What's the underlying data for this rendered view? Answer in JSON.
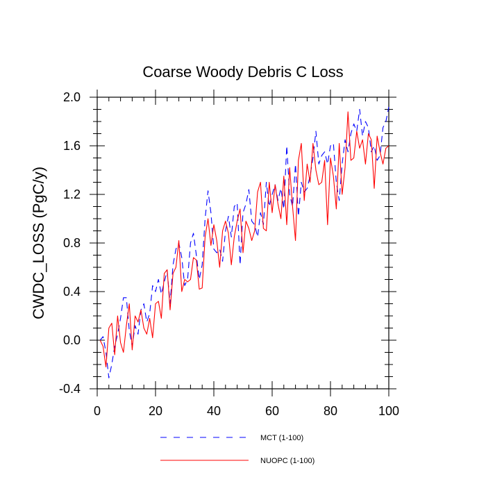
{
  "chart_data": {
    "type": "line",
    "title": "Coarse Woody Debris C Loss",
    "xlabel": "",
    "ylabel": "CWDC_LOSS  (PgC/y)",
    "xlim": [
      0,
      100
    ],
    "ylim": [
      -0.4,
      2.0
    ],
    "xticks": [
      0,
      20,
      40,
      60,
      80,
      100
    ],
    "xtick_labels": [
      "0",
      "20",
      "40",
      "60",
      "80",
      "100"
    ],
    "yticks": [
      -0.4,
      0.0,
      0.4,
      0.8,
      1.2,
      1.6,
      2.0
    ],
    "ytick_labels": [
      "-0.4",
      "0.0",
      "0.4",
      "0.8",
      "1.2",
      "1.6",
      "2.0"
    ],
    "grid": false,
    "legend_position": "bottom",
    "x": [
      1,
      2,
      3,
      4,
      5,
      6,
      7,
      8,
      9,
      10,
      11,
      12,
      13,
      14,
      15,
      16,
      17,
      18,
      19,
      20,
      21,
      22,
      23,
      24,
      25,
      26,
      27,
      28,
      29,
      30,
      31,
      32,
      33,
      34,
      35,
      36,
      37,
      38,
      39,
      40,
      41,
      42,
      43,
      44,
      45,
      46,
      47,
      48,
      49,
      50,
      51,
      52,
      53,
      54,
      55,
      56,
      57,
      58,
      59,
      60,
      61,
      62,
      63,
      64,
      65,
      66,
      67,
      68,
      69,
      70,
      71,
      72,
      73,
      74,
      75,
      76,
      77,
      78,
      79,
      80,
      81,
      82,
      83,
      84,
      85,
      86,
      87,
      88,
      89,
      90,
      91,
      92,
      93,
      94,
      95,
      96,
      97,
      98,
      99,
      100
    ],
    "series": [
      {
        "name": "MCT (1-100)",
        "color": "#0000ff",
        "style": "dashed",
        "values": [
          0.0,
          0.03,
          -0.1,
          -0.31,
          -0.2,
          -0.05,
          0.05,
          0.18,
          0.35,
          0.35,
          0.08,
          -0.05,
          0.12,
          0.05,
          0.25,
          0.3,
          0.15,
          0.22,
          0.45,
          0.4,
          0.5,
          0.38,
          0.48,
          0.57,
          0.3,
          0.62,
          0.75,
          0.8,
          0.68,
          0.45,
          0.5,
          0.8,
          0.88,
          0.7,
          0.5,
          0.62,
          1.0,
          1.23,
          1.05,
          0.75,
          0.72,
          0.75,
          0.65,
          0.9,
          1.02,
          0.85,
          1.1,
          1.13,
          0.62,
          1.05,
          1.12,
          1.24,
          0.98,
          0.95,
          0.85,
          1.05,
          0.95,
          1.3,
          1.1,
          1.2,
          1.28,
          1.15,
          1.25,
          1.08,
          1.6,
          1.2,
          1.1,
          1.45,
          1.02,
          1.3,
          1.22,
          1.25,
          1.35,
          1.5,
          1.72,
          1.45,
          1.52,
          1.55,
          1.45,
          1.6,
          1.62,
          1.3,
          1.15,
          1.45,
          1.65,
          1.55,
          1.7,
          1.78,
          1.72,
          1.9,
          1.68,
          1.8,
          1.75,
          1.55,
          1.6,
          1.48,
          1.52,
          1.75,
          1.8,
          1.92
        ]
      },
      {
        "name": "NUOPC (1-100)",
        "color": "#ff0000",
        "style": "solid",
        "values": [
          0.0,
          -0.05,
          -0.22,
          0.1,
          0.14,
          -0.12,
          0.2,
          -0.02,
          -0.1,
          0.12,
          0.3,
          -0.08,
          0.2,
          0.15,
          0.25,
          0.1,
          0.05,
          0.18,
          0.02,
          0.3,
          0.32,
          0.18,
          0.55,
          0.58,
          0.25,
          0.55,
          0.6,
          0.82,
          0.4,
          0.5,
          0.48,
          0.5,
          0.68,
          0.66,
          0.42,
          0.43,
          0.85,
          1.0,
          0.78,
          0.95,
          0.82,
          0.6,
          0.9,
          0.98,
          0.88,
          0.62,
          0.85,
          0.98,
          1.08,
          0.72,
          0.98,
          0.92,
          0.82,
          0.9,
          1.22,
          1.3,
          0.92,
          0.9,
          1.3,
          1.05,
          1.28,
          1.12,
          1.0,
          1.35,
          0.95,
          1.42,
          1.1,
          0.82,
          1.48,
          1.62,
          1.15,
          1.45,
          1.3,
          1.62,
          1.4,
          1.28,
          1.3,
          1.48,
          0.95,
          1.5,
          1.35,
          1.08,
          1.62,
          1.2,
          1.42,
          1.88,
          1.48,
          1.5,
          1.72,
          1.58,
          1.65,
          1.45,
          1.7,
          1.65,
          1.25,
          1.68,
          1.55,
          1.45,
          1.58,
          1.6
        ]
      }
    ]
  }
}
